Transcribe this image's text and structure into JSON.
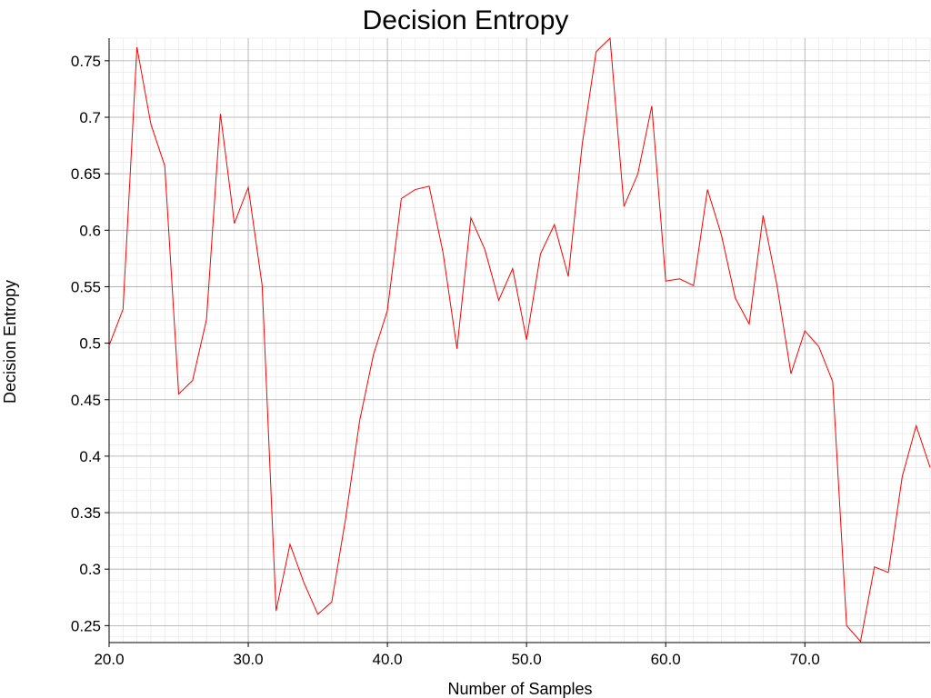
{
  "chart_data": {
    "type": "line",
    "title": "Decision Entropy",
    "xlabel": "Number of Samples",
    "ylabel": "Decision Entropy",
    "xlim": [
      20,
      79
    ],
    "ylim": [
      0.235,
      0.77
    ],
    "grid": true,
    "legend": "none",
    "line_color": "#ff0000",
    "x_ticks": [
      20,
      30,
      40,
      50,
      60,
      70
    ],
    "x_tick_labels": [
      "20.0",
      "30.0",
      "40.0",
      "50.0",
      "60.0",
      "70.0"
    ],
    "y_ticks": [
      0.25,
      0.3,
      0.35,
      0.4,
      0.45,
      0.5,
      0.55,
      0.6,
      0.65,
      0.7,
      0.75
    ],
    "y_tick_labels": [
      "0.25",
      "0.3",
      "0.35",
      "0.4",
      "0.45",
      "0.5",
      "0.55",
      "0.6",
      "0.65",
      "0.7",
      "0.75"
    ],
    "series": [
      {
        "x": [
          20,
          21,
          22,
          23,
          24,
          25,
          26,
          27,
          28,
          29,
          30,
          31,
          32,
          33,
          34,
          35,
          36,
          37,
          38,
          39,
          40,
          41,
          42,
          43,
          44,
          45,
          46,
          47,
          48,
          49,
          50,
          51,
          52,
          53,
          54,
          55,
          56,
          57,
          58,
          59,
          60,
          61,
          62,
          63,
          64,
          65,
          66,
          67,
          68,
          69,
          70,
          71,
          72,
          73,
          74,
          75,
          76,
          77,
          78,
          79
        ],
        "values": [
          0.498,
          0.53,
          0.762,
          0.694,
          0.657,
          0.455,
          0.467,
          0.521,
          0.703,
          0.606,
          0.638,
          0.551,
          0.263,
          0.322,
          0.288,
          0.26,
          0.271,
          0.345,
          0.431,
          0.49,
          0.529,
          0.628,
          0.636,
          0.639,
          0.58,
          0.495,
          0.611,
          0.583,
          0.538,
          0.566,
          0.503,
          0.579,
          0.605,
          0.559,
          0.676,
          0.758,
          0.77,
          0.621,
          0.65,
          0.71,
          0.555,
          0.557,
          0.551,
          0.636,
          0.596,
          0.54,
          0.517,
          0.613,
          0.551,
          0.473,
          0.511,
          0.497,
          0.466,
          0.25,
          0.236,
          0.302,
          0.297,
          0.382,
          0.427,
          0.39
        ]
      }
    ]
  }
}
